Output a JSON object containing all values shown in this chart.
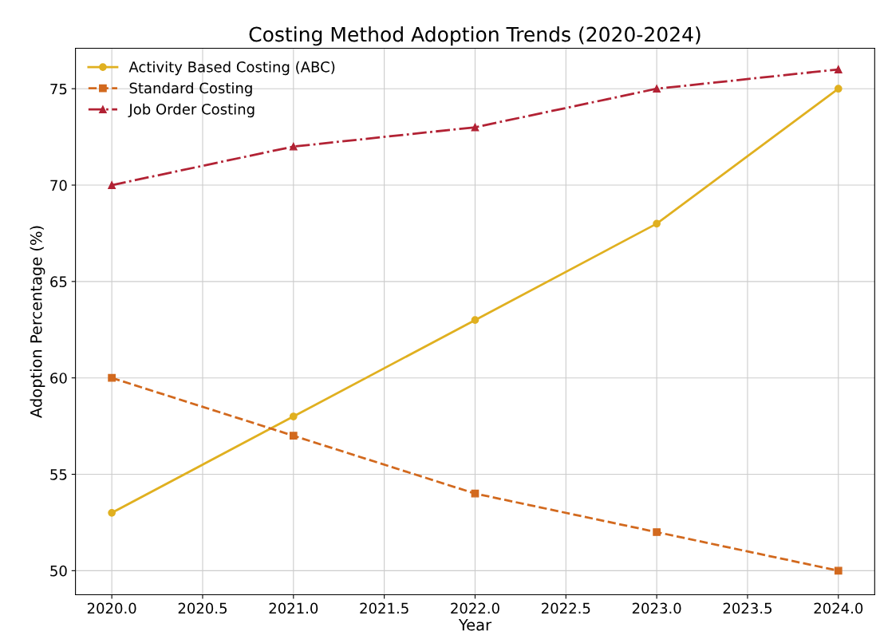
{
  "chart_data": {
    "type": "line",
    "title": "Costing Method Adoption Trends (2020-2024)",
    "xlabel": "Year",
    "ylabel": "Adoption Percentage (%)",
    "x": [
      2020,
      2021,
      2022,
      2023,
      2024
    ],
    "series": [
      {
        "name": "Activity Based Costing (ABC)",
        "color": "#e0b020",
        "values": [
          53,
          58,
          63,
          68,
          75
        ],
        "marker": "circle",
        "line_style": "solid"
      },
      {
        "name": "Standard Costing",
        "color": "#d2691e",
        "values": [
          60,
          57,
          54,
          52,
          50
        ],
        "marker": "square",
        "line_style": "dashed"
      },
      {
        "name": "Job Order Costing",
        "color": "#b22234",
        "values": [
          70,
          72,
          73,
          75,
          76
        ],
        "marker": "triangle",
        "line_style": "dashdot"
      }
    ],
    "xlim": [
      2019.8,
      2024.2
    ],
    "ylim": [
      48.75,
      77.1
    ],
    "xticks": [
      {
        "value": 2020,
        "label": "2020.0"
      },
      {
        "value": 2020.5,
        "label": "2020.5"
      },
      {
        "value": 2021,
        "label": "2021.0"
      },
      {
        "value": 2021.5,
        "label": "2021.5"
      },
      {
        "value": 2022,
        "label": "2022.0"
      },
      {
        "value": 2022.5,
        "label": "2022.5"
      },
      {
        "value": 2023,
        "label": "2023.0"
      },
      {
        "value": 2023.5,
        "label": "2023.5"
      },
      {
        "value": 2024,
        "label": "2024.0"
      }
    ],
    "yticks": [
      50,
      55,
      60,
      65,
      70,
      75
    ],
    "grid": true,
    "legend": "top left"
  }
}
